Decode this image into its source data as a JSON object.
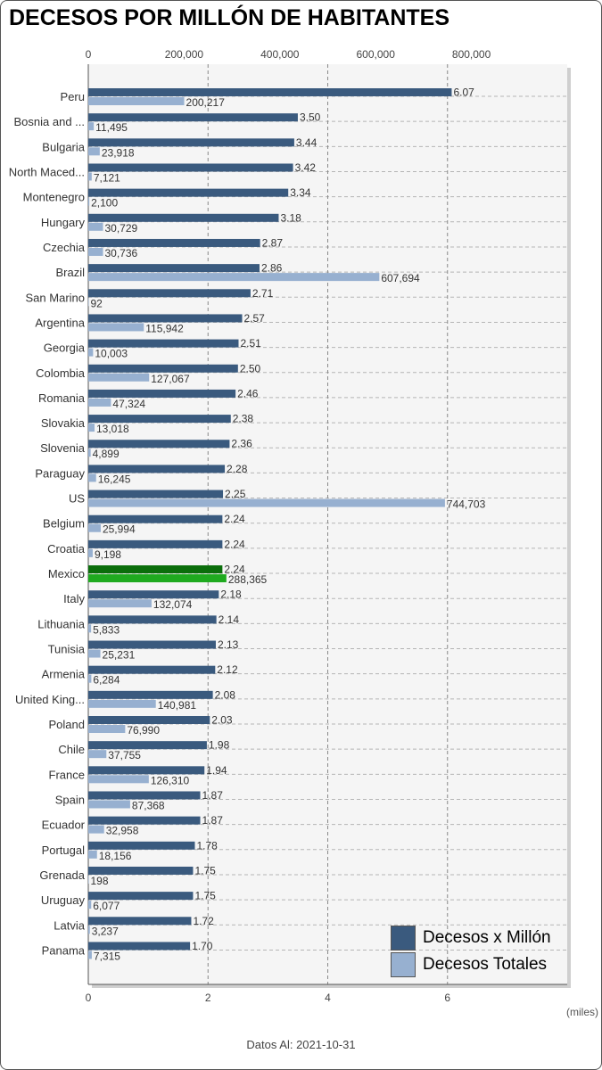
{
  "title": "DECESOS POR MILLÓN DE HABITANTES",
  "footer": {
    "label": "Datos Al:",
    "date": "2021-10-31"
  },
  "units_label": "(miles)",
  "colors": {
    "per_million": "#3a5a7e",
    "total": "#97b0d0",
    "highlight_per_million": "#0b6e0b",
    "highlight_total": "#1faa1f",
    "plot_bg": "#f5f5f5",
    "grid": "#b5b5b5"
  },
  "chart_data": {
    "type": "bar",
    "orientation": "horizontal",
    "highlight_category": "Mexico",
    "categories": [
      "Peru",
      "Bosnia and ...",
      "Bulgaria",
      "North Maced...",
      "Montenegro",
      "Hungary",
      "Czechia",
      "Brazil",
      "San Marino",
      "Argentina",
      "Georgia",
      "Colombia",
      "Romania",
      "Slovakia",
      "Slovenia",
      "Paraguay",
      "US",
      "Belgium",
      "Croatia",
      "Mexico",
      "Italy",
      "Lithuania",
      "Tunisia",
      "Armenia",
      "United King...",
      "Poland",
      "Chile",
      "France",
      "Spain",
      "Ecuador",
      "Portugal",
      "Grenada",
      "Uruguay",
      "Latvia",
      "Panama"
    ],
    "series": [
      {
        "name": "Decesos x Millón",
        "axis": "bottom",
        "values": [
          6.07,
          3.5,
          3.44,
          3.42,
          3.34,
          3.18,
          2.87,
          2.86,
          2.71,
          2.57,
          2.51,
          2.5,
          2.46,
          2.38,
          2.36,
          2.28,
          2.25,
          2.24,
          2.24,
          2.24,
          2.18,
          2.14,
          2.13,
          2.12,
          2.08,
          2.03,
          1.98,
          1.94,
          1.87,
          1.87,
          1.78,
          1.75,
          1.75,
          1.72,
          1.7
        ],
        "labels": [
          "6.07",
          "3.50",
          "3.44",
          "3.42",
          "3.34",
          "3.18",
          "2.87",
          "2.86",
          "2.71",
          "2.57",
          "2.51",
          "2.50",
          "2.46",
          "2.38",
          "2.36",
          "2.28",
          "2.25",
          "2.24",
          "2.24",
          "2.24",
          "2.18",
          "2.14",
          "2.13",
          "2.12",
          "2.08",
          "2.03",
          "1.98",
          "1.94",
          "1.87",
          "1.87",
          "1.78",
          "1.75",
          "1.75",
          "1.72",
          "1.70"
        ]
      },
      {
        "name": "Decesos Totales",
        "axis": "top",
        "values": [
          200217,
          11495,
          23918,
          7121,
          2100,
          30729,
          30736,
          607694,
          92,
          115942,
          10003,
          127067,
          47324,
          13018,
          4899,
          16245,
          744703,
          25994,
          9198,
          288365,
          132074,
          5833,
          25231,
          6284,
          140981,
          76990,
          37755,
          126310,
          87368,
          32958,
          18156,
          198,
          6077,
          3237,
          7315
        ],
        "labels": [
          "200,217",
          "11,495",
          "23,918",
          "7,121",
          "2,100",
          "30,729",
          "30,736",
          "607,694",
          "92",
          "115,942",
          "10,003",
          "127,067",
          "47,324",
          "13,018",
          "4,899",
          "16,245",
          "744,703",
          "25,994",
          "9,198",
          "288,365",
          "132,074",
          "5,833",
          "25,231",
          "6,284",
          "140,981",
          "76,990",
          "37,755",
          "126,310",
          "87,368",
          "32,958",
          "18,156",
          "198",
          "6,077",
          "3,237",
          "7,315"
        ]
      }
    ],
    "top_axis": {
      "range": [
        0,
        1000000
      ],
      "ticks": [
        0,
        200000,
        400000,
        600000,
        800000
      ],
      "tick_labels": [
        "0",
        "200,000",
        "400,000",
        "600,000",
        "800,000"
      ]
    },
    "bottom_axis": {
      "range": [
        0,
        8
      ],
      "ticks": [
        0,
        2,
        4,
        6
      ],
      "tick_labels": [
        "0",
        "2",
        "4",
        "6"
      ]
    },
    "grid": true,
    "legend": {
      "placement": "bottom-right",
      "entries": [
        "Decesos x Millón",
        "Decesos Totales"
      ]
    }
  }
}
